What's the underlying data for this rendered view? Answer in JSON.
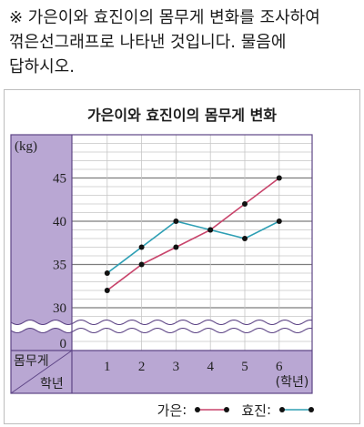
{
  "question": {
    "lines": [
      "※ 가은이와 효진이의 몸무게 변화를 조사하여",
      "꺾은선그래프로 나타낸 것입니다. 물음에",
      "답하시오."
    ]
  },
  "chart_data": {
    "type": "line",
    "title": "가은이와 효진이의 몸무게 변화",
    "ylabel": "(kg)",
    "xlabel": "(학년)",
    "corner_labels": {
      "top": "몸무게",
      "bottom": "학년"
    },
    "categories": [
      "1",
      "2",
      "3",
      "4",
      "5",
      "6"
    ],
    "yticks": [
      0,
      30,
      35,
      40,
      45
    ],
    "ylim": [
      0,
      50
    ],
    "y_axis_break": true,
    "grid": true,
    "legend": "bottom-right",
    "legend_separator": ":",
    "series": [
      {
        "name": "가은",
        "values": [
          32,
          35,
          37,
          39,
          42,
          45
        ],
        "color": "#c8446b"
      },
      {
        "name": "효진",
        "values": [
          34,
          37,
          40,
          39,
          38,
          40
        ],
        "color": "#2e9fb4"
      }
    ],
    "colors": {
      "axis_panel": "#b9a7d3",
      "frame": "#5e4586"
    }
  }
}
